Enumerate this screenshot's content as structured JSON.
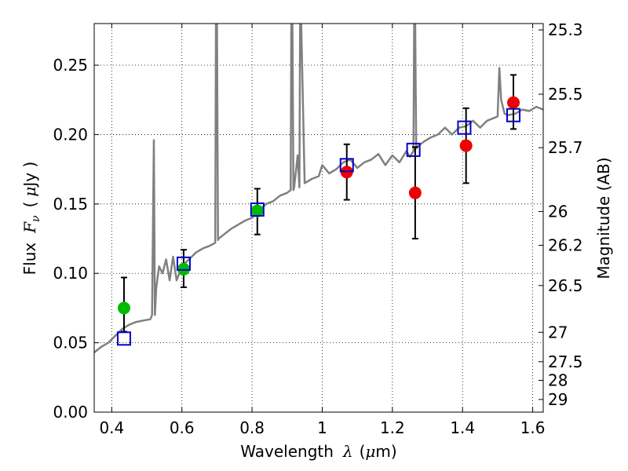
{
  "chart_data": {
    "type": "scatter",
    "xlabel_text": "Wavelength",
    "xlabel_symbol": "λ",
    "xlabel_unit_open": "(",
    "xlabel_unit_mu": "μ",
    "xlabel_unit_rest": "m)",
    "ylabel_text": "Flux",
    "ylabel_symbol": "F",
    "ylabel_sub": "ν",
    "ylabel_unit_open": "(",
    "ylabel_unit_mu": "μ",
    "ylabel_unit_rest": "Jy )",
    "y2label": "Magnitude (AB)",
    "xlim": [
      0.35,
      1.63
    ],
    "ylim": [
      0.0,
      0.28
    ],
    "xticks": [
      0.4,
      0.6,
      0.8,
      1.0,
      1.2,
      1.4,
      1.6
    ],
    "xtick_labels": [
      "0.4",
      "0.6",
      "0.8",
      "1",
      "1.2",
      "1.4",
      "1.6"
    ],
    "yticks": [
      0.0,
      0.05,
      0.1,
      0.15,
      0.2,
      0.25
    ],
    "ytick_labels": [
      "0.00",
      "0.05",
      "0.10",
      "0.15",
      "0.20",
      "0.25"
    ],
    "mag_ticks": [
      25.3,
      25.5,
      25.7,
      26,
      26.2,
      26.5,
      27,
      27.5,
      28,
      29
    ],
    "mag_tick_labels": [
      "25.3",
      "25.5",
      "25.7",
      "26",
      "26.2",
      "26.5",
      "27",
      "27.5",
      "28",
      "29"
    ],
    "grid": true,
    "colors": {
      "model": "#808080",
      "green": "#00bb00",
      "red": "#ee0000",
      "box": "#0000cc"
    },
    "series": [
      {
        "name": "model spectrum",
        "kind": "line",
        "x": [
          0.35,
          0.37,
          0.39,
          0.41,
          0.43,
          0.45,
          0.47,
          0.49,
          0.51,
          0.515,
          0.52,
          0.523,
          0.527,
          0.535,
          0.545,
          0.555,
          0.565,
          0.575,
          0.585,
          0.6,
          0.62,
          0.64,
          0.66,
          0.68,
          0.695,
          0.697,
          0.7,
          0.703,
          0.705,
          0.72,
          0.74,
          0.76,
          0.78,
          0.8,
          0.82,
          0.84,
          0.86,
          0.88,
          0.9,
          0.91,
          0.912,
          0.915,
          0.918,
          0.92,
          0.93,
          0.935,
          0.937,
          0.94,
          0.95,
          0.97,
          0.99,
          1.0,
          1.02,
          1.04,
          1.06,
          1.08,
          1.1,
          1.12,
          1.14,
          1.16,
          1.18,
          1.2,
          1.22,
          1.24,
          1.25,
          1.26,
          1.262,
          1.265,
          1.268,
          1.27,
          1.29,
          1.31,
          1.33,
          1.35,
          1.37,
          1.39,
          1.41,
          1.43,
          1.45,
          1.47,
          1.49,
          1.5,
          1.505,
          1.51,
          1.52,
          1.53,
          1.55,
          1.57,
          1.59,
          1.61,
          1.63
        ],
        "y": [
          0.043,
          0.047,
          0.05,
          0.055,
          0.06,
          0.063,
          0.065,
          0.066,
          0.067,
          0.07,
          0.196,
          0.07,
          0.09,
          0.105,
          0.1,
          0.11,
          0.095,
          0.112,
          0.095,
          0.105,
          0.11,
          0.115,
          0.118,
          0.12,
          0.122,
          0.28,
          0.28,
          0.124,
          0.125,
          0.128,
          0.132,
          0.135,
          0.138,
          0.14,
          0.145,
          0.15,
          0.152,
          0.156,
          0.158,
          0.16,
          0.28,
          0.28,
          0.16,
          0.162,
          0.185,
          0.162,
          0.28,
          0.28,
          0.165,
          0.168,
          0.17,
          0.178,
          0.172,
          0.175,
          0.18,
          0.182,
          0.176,
          0.18,
          0.182,
          0.186,
          0.178,
          0.185,
          0.18,
          0.188,
          0.184,
          0.188,
          0.28,
          0.28,
          0.19,
          0.191,
          0.195,
          0.198,
          0.2,
          0.205,
          0.2,
          0.205,
          0.206,
          0.21,
          0.205,
          0.21,
          0.212,
          0.213,
          0.248,
          0.225,
          0.215,
          0.214,
          0.215,
          0.218,
          0.217,
          0.22,
          0.218
        ]
      },
      {
        "name": "observed (green)",
        "kind": "points",
        "x": [
          0.435,
          0.605,
          0.815
        ],
        "y": [
          0.075,
          0.103,
          0.145
        ],
        "yerr_low": [
          0.058,
          0.09,
          0.128
        ],
        "yerr_high": [
          0.097,
          0.117,
          0.161
        ]
      },
      {
        "name": "observed (red)",
        "kind": "points",
        "x": [
          1.07,
          1.265,
          1.41,
          1.545
        ],
        "y": [
          0.173,
          0.158,
          0.192,
          0.223
        ],
        "yerr_low": [
          0.153,
          0.125,
          0.165,
          0.204
        ],
        "yerr_high": [
          0.193,
          0.191,
          0.219,
          0.243
        ]
      },
      {
        "name": "model photometry",
        "kind": "squares",
        "x": [
          0.435,
          0.605,
          0.815,
          1.07,
          1.26,
          1.405,
          1.545
        ],
        "y": [
          0.053,
          0.107,
          0.146,
          0.178,
          0.189,
          0.205,
          0.214
        ]
      }
    ]
  }
}
